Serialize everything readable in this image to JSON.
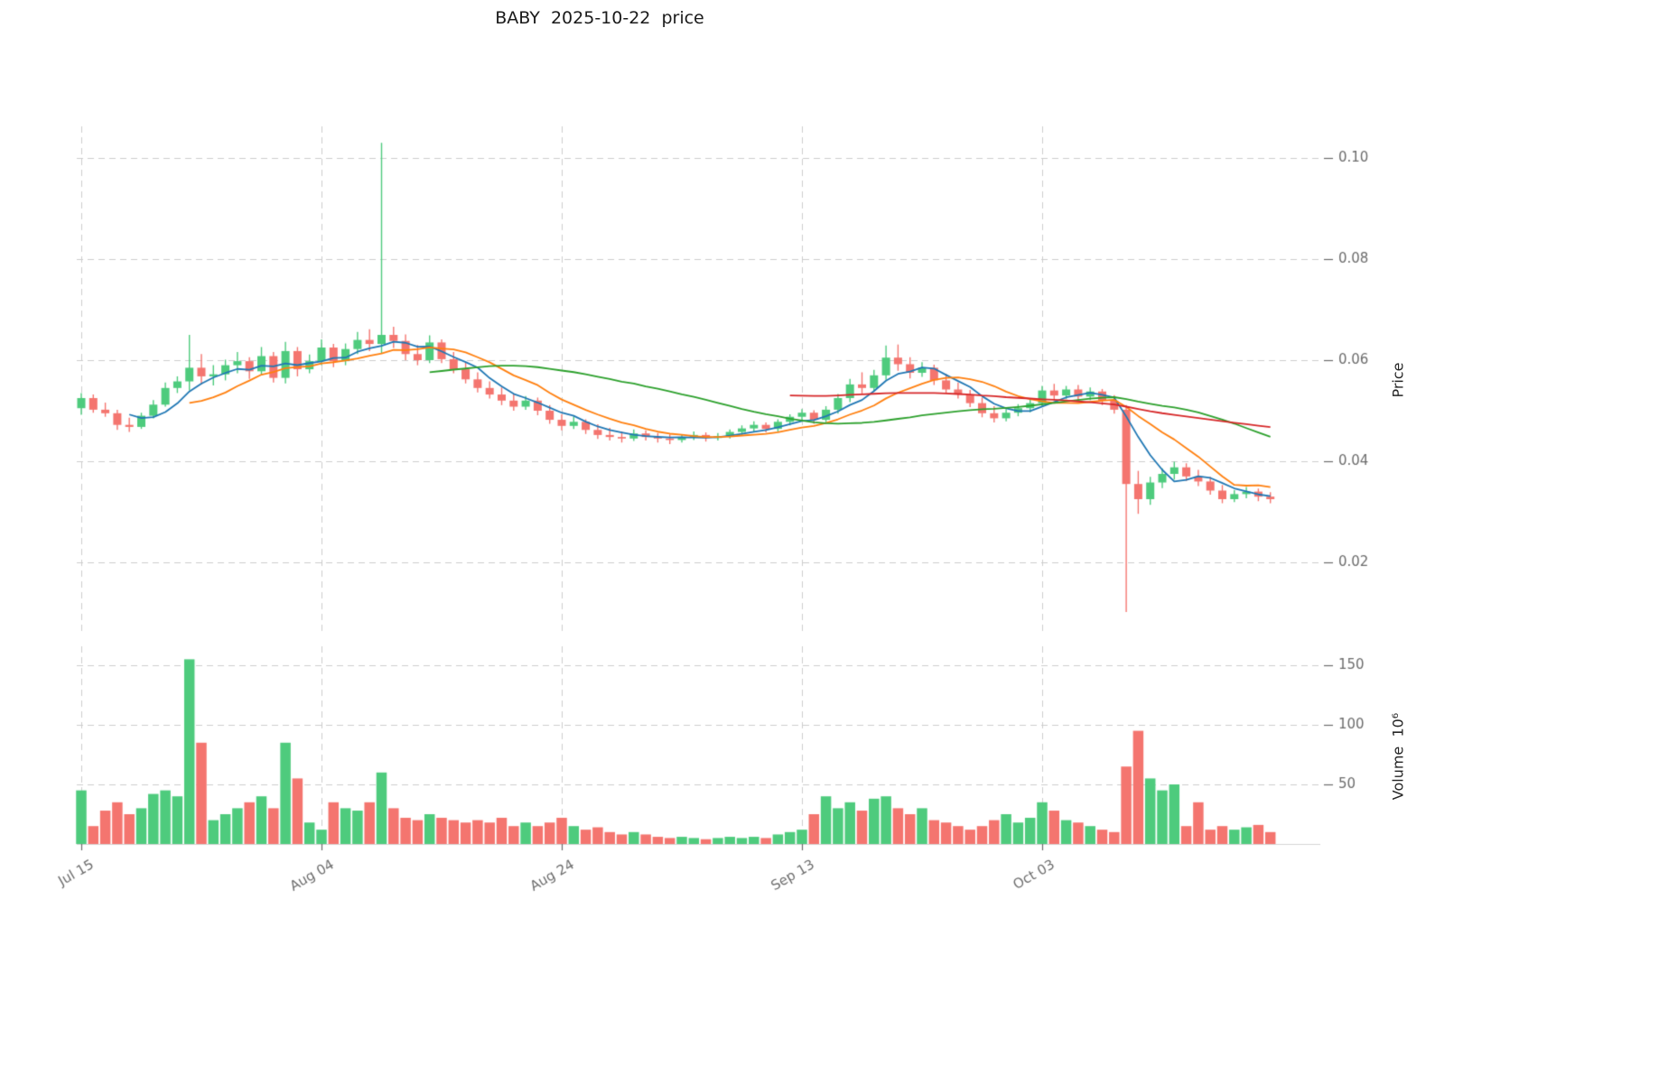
{
  "title": "BABY  2025-10-22  price",
  "chart_data": {
    "type": "candlestick",
    "symbol": "BABY",
    "as_of_date": "2025-10-22",
    "grid": true,
    "legend": "none",
    "price_axis": {
      "label": "Price",
      "side": "right",
      "ylim": [
        0.006,
        0.107
      ],
      "ticks": [
        {
          "value": 0.02,
          "label": "0.02"
        },
        {
          "value": 0.04,
          "label": "0.04"
        },
        {
          "value": 0.06,
          "label": "0.06"
        },
        {
          "value": 0.08,
          "label": "0.08"
        },
        {
          "value": 0.1,
          "label": "0.10"
        }
      ]
    },
    "volume_axis": {
      "label": "Volume  10⁶",
      "side": "right",
      "ylim": [
        0,
        166
      ],
      "ticks": [
        {
          "value": 50,
          "label": "50"
        },
        {
          "value": 100,
          "label": "100"
        },
        {
          "value": 150,
          "label": "150"
        }
      ]
    },
    "x_axis": {
      "ticks": [
        {
          "index": 0,
          "label": "Jul 15"
        },
        {
          "index": 20,
          "label": "Aug 04"
        },
        {
          "index": 40,
          "label": "Aug 24"
        },
        {
          "index": 60,
          "label": "Sep 13"
        },
        {
          "index": 80,
          "label": "Oct 03"
        }
      ]
    },
    "moving_averages": [
      {
        "period": 5,
        "color": "#1f77b4"
      },
      {
        "period": 10,
        "color": "#ff7f0e"
      },
      {
        "period": 30,
        "color": "#2ca02c"
      },
      {
        "period": 60,
        "color": "#d62728"
      }
    ],
    "colors": {
      "up": "#4ecb7d",
      "down": "#f4756f",
      "grid": "#cdcdcd",
      "tick_text": "#6b6b6b",
      "title_text": "#1a1a1a"
    },
    "columns": [
      "date",
      "open",
      "high",
      "low",
      "close",
      "volume_millions"
    ],
    "ohlcv": [
      [
        "2025-07-15",
        0.0505,
        0.0535,
        0.0492,
        0.0525,
        45
      ],
      [
        "2025-07-16",
        0.0525,
        0.0532,
        0.0496,
        0.0502,
        15
      ],
      [
        "2025-07-17",
        0.0502,
        0.0516,
        0.0488,
        0.0495,
        28
      ],
      [
        "2025-07-18",
        0.0495,
        0.0502,
        0.0462,
        0.0472,
        35
      ],
      [
        "2025-07-19",
        0.0472,
        0.0486,
        0.0458,
        0.0468,
        25
      ],
      [
        "2025-07-20",
        0.0468,
        0.0496,
        0.0464,
        0.049,
        30
      ],
      [
        "2025-07-21",
        0.049,
        0.0521,
        0.0485,
        0.0512,
        42
      ],
      [
        "2025-07-22",
        0.0512,
        0.0556,
        0.0508,
        0.0545,
        45
      ],
      [
        "2025-07-23",
        0.0545,
        0.0568,
        0.0535,
        0.0558,
        40
      ],
      [
        "2025-07-24",
        0.0558,
        0.065,
        0.054,
        0.0585,
        155
      ],
      [
        "2025-07-25",
        0.0585,
        0.0612,
        0.0552,
        0.0568,
        85
      ],
      [
        "2025-07-26",
        0.0568,
        0.059,
        0.055,
        0.0572,
        20
      ],
      [
        "2025-07-27",
        0.0572,
        0.0601,
        0.056,
        0.059,
        25
      ],
      [
        "2025-07-28",
        0.059,
        0.0616,
        0.0574,
        0.0598,
        30
      ],
      [
        "2025-07-29",
        0.0598,
        0.0606,
        0.0563,
        0.0578,
        35
      ],
      [
        "2025-07-30",
        0.0578,
        0.0626,
        0.057,
        0.0608,
        40
      ],
      [
        "2025-07-31",
        0.0608,
        0.0616,
        0.0556,
        0.0565,
        30
      ],
      [
        "2025-08-01",
        0.0565,
        0.0636,
        0.0554,
        0.0618,
        85
      ],
      [
        "2025-08-02",
        0.0618,
        0.0626,
        0.0568,
        0.0582,
        55
      ],
      [
        "2025-08-03",
        0.0582,
        0.0611,
        0.0574,
        0.0598,
        18
      ],
      [
        "2025-08-04",
        0.0598,
        0.0641,
        0.059,
        0.0625,
        12
      ],
      [
        "2025-08-05",
        0.0625,
        0.0632,
        0.0586,
        0.0598,
        35
      ],
      [
        "2025-08-06",
        0.0598,
        0.0633,
        0.059,
        0.0622,
        30
      ],
      [
        "2025-08-07",
        0.0622,
        0.0656,
        0.0612,
        0.064,
        28
      ],
      [
        "2025-08-08",
        0.064,
        0.0661,
        0.0618,
        0.0632,
        35
      ],
      [
        "2025-08-09",
        0.0632,
        0.103,
        0.0614,
        0.065,
        60
      ],
      [
        "2025-08-10",
        0.065,
        0.0666,
        0.0624,
        0.0638,
        30
      ],
      [
        "2025-08-11",
        0.0638,
        0.0651,
        0.06,
        0.0612,
        22
      ],
      [
        "2025-08-12",
        0.0612,
        0.063,
        0.059,
        0.06,
        20
      ],
      [
        "2025-08-13",
        0.06,
        0.0649,
        0.0594,
        0.0635,
        25
      ],
      [
        "2025-08-14",
        0.0635,
        0.0641,
        0.0594,
        0.0602,
        22
      ],
      [
        "2025-08-15",
        0.0602,
        0.0616,
        0.0574,
        0.0582,
        20
      ],
      [
        "2025-08-16",
        0.0582,
        0.0596,
        0.0554,
        0.0562,
        18
      ],
      [
        "2025-08-17",
        0.0562,
        0.0576,
        0.0536,
        0.0545,
        20
      ],
      [
        "2025-08-18",
        0.0545,
        0.0558,
        0.0524,
        0.0532,
        18
      ],
      [
        "2025-08-19",
        0.0532,
        0.0546,
        0.0511,
        0.052,
        22
      ],
      [
        "2025-08-20",
        0.052,
        0.0533,
        0.05,
        0.0508,
        15
      ],
      [
        "2025-08-21",
        0.0508,
        0.0529,
        0.0502,
        0.052,
        18
      ],
      [
        "2025-08-22",
        0.052,
        0.0526,
        0.0491,
        0.05,
        15
      ],
      [
        "2025-08-23",
        0.05,
        0.0511,
        0.0474,
        0.0482,
        18
      ],
      [
        "2025-08-24",
        0.0482,
        0.0493,
        0.0461,
        0.047,
        22
      ],
      [
        "2025-08-25",
        0.047,
        0.0489,
        0.0464,
        0.0478,
        15
      ],
      [
        "2025-08-26",
        0.0478,
        0.0483,
        0.0454,
        0.0462,
        12
      ],
      [
        "2025-08-27",
        0.0462,
        0.0473,
        0.0444,
        0.0452,
        14
      ],
      [
        "2025-08-28",
        0.0452,
        0.0466,
        0.0441,
        0.0448,
        10
      ],
      [
        "2025-08-29",
        0.0448,
        0.0459,
        0.0437,
        0.0445,
        8
      ],
      [
        "2025-08-30",
        0.0445,
        0.0463,
        0.044,
        0.0455,
        10
      ],
      [
        "2025-08-31",
        0.0455,
        0.0461,
        0.0441,
        0.0448,
        8
      ],
      [
        "2025-09-01",
        0.0448,
        0.0456,
        0.0437,
        0.0445,
        6
      ],
      [
        "2025-09-02",
        0.0445,
        0.0453,
        0.0434,
        0.0442,
        5
      ],
      [
        "2025-09-03",
        0.0442,
        0.0453,
        0.0437,
        0.0448,
        6
      ],
      [
        "2025-09-04",
        0.0448,
        0.0459,
        0.0442,
        0.0452,
        5
      ],
      [
        "2025-09-05",
        0.0452,
        0.0457,
        0.0439,
        0.0446,
        4
      ],
      [
        "2025-09-06",
        0.0446,
        0.0456,
        0.0441,
        0.045,
        5
      ],
      [
        "2025-09-07",
        0.045,
        0.0463,
        0.0445,
        0.0458,
        6
      ],
      [
        "2025-09-08",
        0.0458,
        0.0471,
        0.0452,
        0.0465,
        5
      ],
      [
        "2025-09-09",
        0.0465,
        0.0479,
        0.0459,
        0.0472,
        6
      ],
      [
        "2025-09-10",
        0.0472,
        0.0477,
        0.0457,
        0.0464,
        5
      ],
      [
        "2025-09-11",
        0.0464,
        0.0483,
        0.0459,
        0.0478,
        8
      ],
      [
        "2025-09-12",
        0.0478,
        0.0493,
        0.0471,
        0.0488,
        10
      ],
      [
        "2025-09-13",
        0.0488,
        0.0503,
        0.0481,
        0.0496,
        12
      ],
      [
        "2025-09-14",
        0.0496,
        0.0501,
        0.0474,
        0.0482,
        25
      ],
      [
        "2025-09-15",
        0.0482,
        0.0509,
        0.0477,
        0.0502,
        40
      ],
      [
        "2025-09-16",
        0.0502,
        0.0533,
        0.0494,
        0.0525,
        30
      ],
      [
        "2025-09-17",
        0.0525,
        0.0563,
        0.0517,
        0.0552,
        35
      ],
      [
        "2025-09-18",
        0.0552,
        0.0576,
        0.0534,
        0.0545,
        28
      ],
      [
        "2025-09-19",
        0.0545,
        0.0581,
        0.0539,
        0.057,
        38
      ],
      [
        "2025-09-20",
        0.057,
        0.0629,
        0.0561,
        0.0605,
        40
      ],
      [
        "2025-09-21",
        0.0605,
        0.0631,
        0.0579,
        0.0592,
        30
      ],
      [
        "2025-09-22",
        0.0592,
        0.0606,
        0.0564,
        0.0575,
        25
      ],
      [
        "2025-09-23",
        0.0575,
        0.0596,
        0.0567,
        0.0585,
        30
      ],
      [
        "2025-09-24",
        0.0585,
        0.0591,
        0.0551,
        0.056,
        20
      ],
      [
        "2025-09-25",
        0.056,
        0.0573,
        0.0534,
        0.0542,
        18
      ],
      [
        "2025-09-26",
        0.0542,
        0.0556,
        0.0524,
        0.0532,
        15
      ],
      [
        "2025-09-27",
        0.0532,
        0.0541,
        0.0507,
        0.0515,
        12
      ],
      [
        "2025-09-28",
        0.0515,
        0.0526,
        0.0487,
        0.0495,
        15
      ],
      [
        "2025-09-29",
        0.0495,
        0.0509,
        0.0477,
        0.0485,
        20
      ],
      [
        "2025-09-30",
        0.0485,
        0.0503,
        0.0479,
        0.0496,
        25
      ],
      [
        "2025-10-01",
        0.0496,
        0.0513,
        0.0489,
        0.0505,
        18
      ],
      [
        "2025-10-02",
        0.0505,
        0.0523,
        0.0497,
        0.0515,
        22
      ],
      [
        "2025-10-03",
        0.0515,
        0.0549,
        0.0509,
        0.054,
        35
      ],
      [
        "2025-10-04",
        0.054,
        0.0553,
        0.0521,
        0.053,
        28
      ],
      [
        "2025-10-05",
        0.053,
        0.0549,
        0.0523,
        0.0542,
        20
      ],
      [
        "2025-10-06",
        0.0542,
        0.0551,
        0.0519,
        0.0528,
        18
      ],
      [
        "2025-10-07",
        0.0528,
        0.0546,
        0.0521,
        0.0538,
        15
      ],
      [
        "2025-10-08",
        0.0538,
        0.0543,
        0.0511,
        0.052,
        12
      ],
      [
        "2025-10-09",
        0.052,
        0.0531,
        0.0494,
        0.0502,
        10
      ],
      [
        "2025-10-10",
        0.0502,
        0.0511,
        0.0102,
        0.0355,
        65
      ],
      [
        "2025-10-11",
        0.0355,
        0.0381,
        0.0296,
        0.0325,
        95
      ],
      [
        "2025-10-12",
        0.0325,
        0.0369,
        0.0314,
        0.0358,
        55
      ],
      [
        "2025-10-13",
        0.0358,
        0.0386,
        0.0347,
        0.0375,
        45
      ],
      [
        "2025-10-14",
        0.0375,
        0.0399,
        0.0364,
        0.0388,
        50
      ],
      [
        "2025-10-15",
        0.0388,
        0.0396,
        0.0361,
        0.037,
        15
      ],
      [
        "2025-10-16",
        0.037,
        0.0383,
        0.0351,
        0.036,
        35
      ],
      [
        "2025-10-17",
        0.036,
        0.0369,
        0.0334,
        0.0342,
        12
      ],
      [
        "2025-10-18",
        0.0342,
        0.0353,
        0.0317,
        0.0325,
        15
      ],
      [
        "2025-10-19",
        0.0325,
        0.0343,
        0.0319,
        0.0335,
        12
      ],
      [
        "2025-10-20",
        0.0335,
        0.0349,
        0.0327,
        0.034,
        14
      ],
      [
        "2025-10-21",
        0.034,
        0.0346,
        0.0321,
        0.033,
        16
      ],
      [
        "2025-10-22",
        0.033,
        0.0339,
        0.0317,
        0.0325,
        10
      ]
    ]
  }
}
